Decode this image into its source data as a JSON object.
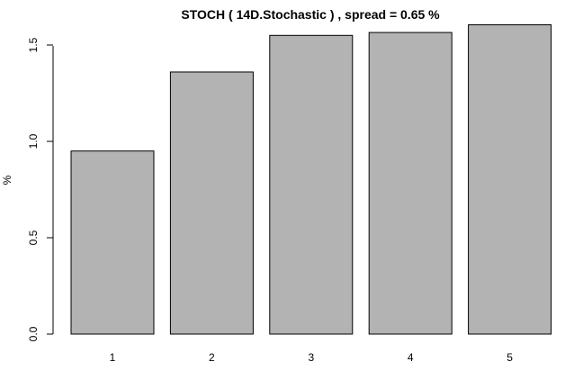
{
  "chart_data": {
    "type": "bar",
    "title": "STOCH ( 14D.Stochastic ) , spread = 0.65 %",
    "xlabel": "",
    "ylabel": "%",
    "categories": [
      "1",
      "2",
      "3",
      "4",
      "5"
    ],
    "values": [
      0.95,
      1.36,
      1.55,
      1.565,
      1.605
    ],
    "ylim": [
      0,
      1.6
    ],
    "yticks": [
      0.0,
      0.5,
      1.0,
      1.5
    ],
    "ytick_labels": [
      "0.0",
      "0.5",
      "1.0",
      "1.5"
    ],
    "bar_color": "#b3b3b3",
    "grid": false
  }
}
